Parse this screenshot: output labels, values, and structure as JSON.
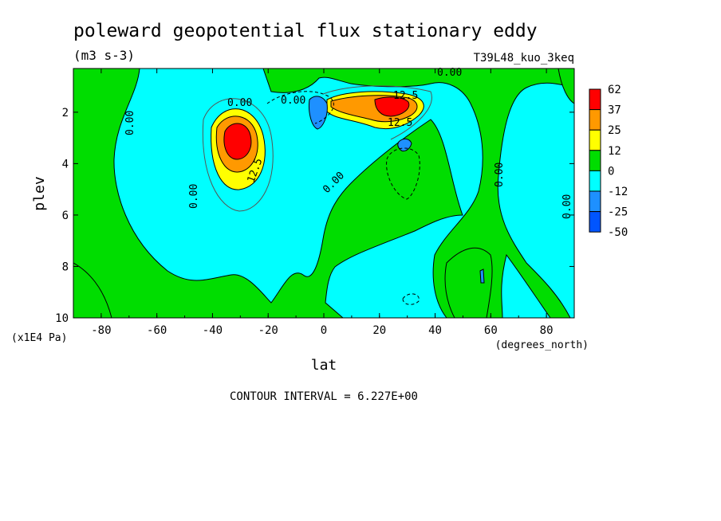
{
  "chart_data": {
    "type": "heatmap",
    "title": "poleward geopotential flux stationary eddy",
    "units": "(m3 s-3)",
    "dataset_label": "T39L48_kuo_3keq",
    "xlabel": "lat",
    "x_units": "(degrees_north)",
    "ylabel": "plev",
    "y_units": "(x1E4 Pa)",
    "xlim": [
      -90,
      90
    ],
    "ylim": [
      10,
      0.3
    ],
    "x_ticks": [
      -80,
      -60,
      -40,
      -20,
      0,
      20,
      40,
      60,
      80
    ],
    "x_tick_labels": [
      "-80",
      "-60",
      "-40",
      "-20",
      "0",
      "20",
      "40",
      "60",
      "80"
    ],
    "y_ticks": [
      2,
      4,
      6,
      8,
      10
    ],
    "y_tick_labels": [
      "2",
      "4",
      "6",
      "8",
      "10"
    ],
    "contour_interval_text": "CONTOUR INTERVAL = 6.227E+00",
    "contour_labels": [
      "0.00",
      "0.00",
      "0.00",
      "0.00",
      "0.00",
      "0.00",
      "0.00",
      "0.00",
      "12.5",
      "12.5",
      "12.5"
    ],
    "colorbar": {
      "levels": [
        "62",
        "37",
        "25",
        "12",
        "0",
        "-12",
        "-25",
        "-50"
      ],
      "colors": [
        "#ff0000",
        "#ff9900",
        "#ffff00",
        "#00dd00",
        "#00ffff",
        "#1e90ff",
        "#0055ff"
      ]
    },
    "features": [
      {
        "name": "southern positive maximum",
        "lat": -30,
        "plev": 2.8,
        "value": 62
      },
      {
        "name": "northern positive maximum",
        "lat": 22,
        "plev": 1.8,
        "value": 62
      },
      {
        "name": "equatorial negative minimum",
        "lat": -2,
        "plev": 1.7,
        "value": -25
      },
      {
        "name": "subtropical negative patch",
        "lat": 28,
        "plev": 3.1,
        "value": -25
      },
      {
        "name": "high latitude negative region",
        "lat": 70,
        "plev": 5,
        "value": -12
      }
    ]
  }
}
